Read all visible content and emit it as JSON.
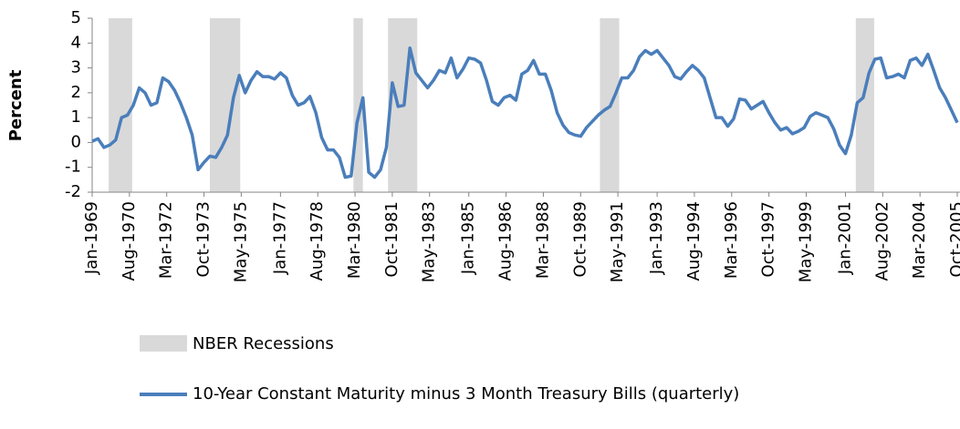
{
  "chart_data": {
    "type": "line",
    "ylabel": "Percent",
    "ylim": [
      -2,
      5
    ],
    "yticks": [
      -2,
      -1,
      0,
      1,
      2,
      3,
      4,
      5
    ],
    "xlim": [
      1969,
      2005.75
    ],
    "xticks": [
      {
        "value": 1969.0,
        "label": "Jan-1969"
      },
      {
        "value": 1970.583,
        "label": "Aug-1970"
      },
      {
        "value": 1972.167,
        "label": "Mar-1972"
      },
      {
        "value": 1973.75,
        "label": "Oct-1973"
      },
      {
        "value": 1975.333,
        "label": "May-1975"
      },
      {
        "value": 1977.0,
        "label": "Jan-1977"
      },
      {
        "value": 1978.583,
        "label": "Aug-1978"
      },
      {
        "value": 1980.167,
        "label": "Mar-1980"
      },
      {
        "value": 1981.75,
        "label": "Oct-1981"
      },
      {
        "value": 1983.333,
        "label": "May-1983"
      },
      {
        "value": 1985.0,
        "label": "Jan-1985"
      },
      {
        "value": 1986.583,
        "label": "Aug-1986"
      },
      {
        "value": 1988.167,
        "label": "Mar-1988"
      },
      {
        "value": 1989.75,
        "label": "Oct-1989"
      },
      {
        "value": 1991.333,
        "label": "May-1991"
      },
      {
        "value": 1993.0,
        "label": "Jan-1993"
      },
      {
        "value": 1994.583,
        "label": "Aug-1994"
      },
      {
        "value": 1996.167,
        "label": "Mar-1996"
      },
      {
        "value": 1997.75,
        "label": "Oct-1997"
      },
      {
        "value": 1999.333,
        "label": "May-1999"
      },
      {
        "value": 2001.0,
        "label": "Jan-2001"
      },
      {
        "value": 2002.583,
        "label": "Aug-2002"
      },
      {
        "value": 2004.167,
        "label": "Mar-2004"
      },
      {
        "value": 2005.75,
        "label": "Oct-2005"
      }
    ],
    "recessions": {
      "name": "NBER Recessions",
      "color": "#d9d9d9",
      "ranges": [
        [
          1969.7,
          1970.7
        ],
        [
          1974.0,
          1975.29
        ],
        [
          1980.1,
          1980.5
        ],
        [
          1981.57,
          1982.81
        ],
        [
          1990.57,
          1991.39
        ],
        [
          2001.44,
          2002.22
        ]
      ]
    },
    "series": [
      {
        "name": "10-Year Constant Maturity minus 3 Month Treasury Bills (quarterly)",
        "color": "#4a7ebb",
        "x": [
          1969,
          1969.25,
          1969.5,
          1969.75,
          1970,
          1970.25,
          1970.5,
          1970.75,
          1971,
          1971.25,
          1971.5,
          1971.75,
          1972,
          1972.25,
          1972.5,
          1972.75,
          1973,
          1973.25,
          1973.5,
          1973.75,
          1974,
          1974.25,
          1974.5,
          1974.75,
          1975,
          1975.25,
          1975.5,
          1975.75,
          1976,
          1976.25,
          1976.5,
          1976.75,
          1977,
          1977.25,
          1977.5,
          1977.75,
          1978,
          1978.25,
          1978.5,
          1978.75,
          1979,
          1979.25,
          1979.5,
          1979.75,
          1980,
          1980.25,
          1980.5,
          1980.75,
          1981,
          1981.25,
          1981.5,
          1981.75,
          1982,
          1982.25,
          1982.5,
          1982.75,
          1983,
          1983.25,
          1983.5,
          1983.75,
          1984,
          1984.25,
          1984.5,
          1984.75,
          1985,
          1985.25,
          1985.5,
          1985.75,
          1986,
          1986.25,
          1986.5,
          1986.75,
          1987,
          1987.25,
          1987.5,
          1987.75,
          1988,
          1988.25,
          1988.5,
          1988.75,
          1989,
          1989.25,
          1989.5,
          1989.75,
          1990,
          1990.25,
          1990.5,
          1990.75,
          1991,
          1991.25,
          1991.5,
          1991.75,
          1992,
          1992.25,
          1992.5,
          1992.75,
          1993,
          1993.25,
          1993.5,
          1993.75,
          1994,
          1994.25,
          1994.5,
          1994.75,
          1995,
          1995.25,
          1995.5,
          1995.75,
          1996,
          1996.25,
          1996.5,
          1996.75,
          1997,
          1997.25,
          1997.5,
          1997.75,
          1998,
          1998.25,
          1998.5,
          1998.75,
          1999,
          1999.25,
          1999.5,
          1999.75,
          2000,
          2000.25,
          2000.5,
          2000.75,
          2001,
          2001.25,
          2001.5,
          2001.75,
          2002,
          2002.25,
          2002.5,
          2002.75,
          2003,
          2003.25,
          2003.5,
          2003.75,
          2004,
          2004.25,
          2004.5,
          2004.75,
          2005,
          2005.25,
          2005.5,
          2005.75
        ],
        "values": [
          0.05,
          0.15,
          -0.2,
          -0.1,
          0.1,
          1.0,
          1.1,
          1.5,
          2.2,
          2.0,
          1.5,
          1.6,
          2.6,
          2.45,
          2.1,
          1.6,
          1.0,
          0.3,
          -1.1,
          -0.8,
          -0.55,
          -0.6,
          -0.2,
          0.3,
          1.8,
          2.7,
          2.0,
          2.5,
          2.85,
          2.65,
          2.65,
          2.55,
          2.8,
          2.6,
          1.9,
          1.5,
          1.6,
          1.85,
          1.2,
          0.2,
          -0.3,
          -0.3,
          -0.6,
          -1.4,
          -1.35,
          0.8,
          1.8,
          -1.2,
          -1.4,
          -1.1,
          -0.2,
          2.4,
          1.45,
          1.5,
          3.8,
          2.8,
          2.5,
          2.2,
          2.5,
          2.9,
          2.8,
          3.4,
          2.6,
          2.95,
          3.4,
          3.35,
          3.2,
          2.5,
          1.65,
          1.5,
          1.8,
          1.9,
          1.7,
          2.75,
          2.9,
          3.3,
          2.75,
          2.75,
          2.1,
          1.2,
          0.7,
          0.4,
          0.3,
          0.25,
          0.6,
          0.85,
          1.1,
          1.3,
          1.45,
          2.0,
          2.6,
          2.6,
          2.9,
          3.45,
          3.7,
          3.55,
          3.7,
          3.4,
          3.1,
          2.65,
          2.55,
          2.85,
          3.1,
          2.9,
          2.6,
          1.8,
          1.0,
          1.0,
          0.65,
          0.95,
          1.75,
          1.7,
          1.35,
          1.5,
          1.65,
          1.2,
          0.8,
          0.5,
          0.6,
          0.35,
          0.45,
          0.6,
          1.05,
          1.2,
          1.1,
          1.0,
          0.55,
          -0.1,
          -0.45,
          0.3,
          1.6,
          1.8,
          2.8,
          3.35,
          3.4,
          2.6,
          2.65,
          2.75,
          2.6,
          3.3,
          3.4,
          3.1,
          3.55,
          2.9,
          2.2,
          1.8,
          1.3,
          0.8
        ]
      }
    ]
  }
}
